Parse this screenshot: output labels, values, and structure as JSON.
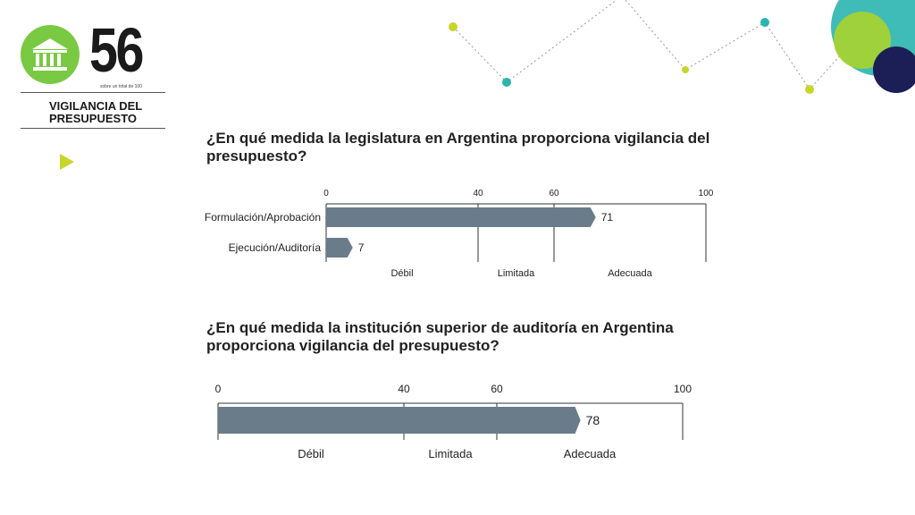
{
  "colors": {
    "bar": "#6a7b89",
    "green": "#7ac943",
    "teal": "#2bb5b0",
    "navy": "#1c1f55",
    "lime": "#c8d62a"
  },
  "logo": {
    "icon": "bank-building-icon",
    "score": "56",
    "score_sub": "sobre un total de 100",
    "section_title": "VIGILANCIA DEL PRESUPUESTO"
  },
  "nav": {
    "icon": "play-triangle-icon"
  },
  "chart_data": [
    {
      "type": "bar",
      "orientation": "horizontal",
      "title": "¿En qué medida la legislatura en Argentina proporciona vigilancia del presupuesto?",
      "categories": [
        "Formulación/Aprobación",
        "Ejecución/Auditoría"
      ],
      "values": [
        71,
        7
      ],
      "xlim": [
        0,
        100
      ],
      "ticks": [
        0,
        40,
        60,
        100
      ],
      "bands": [
        "Débil",
        "Limitada",
        "Adecuada"
      ]
    },
    {
      "type": "bar",
      "orientation": "horizontal",
      "title": "¿En qué medida la institución superior de auditoría en Argentina proporciona vigilancia del presupuesto?",
      "categories": [
        ""
      ],
      "values": [
        78
      ],
      "xlim": [
        0,
        100
      ],
      "ticks": [
        0,
        40,
        60,
        100
      ],
      "bands": [
        "Débil",
        "Limitada",
        "Adecuada"
      ]
    }
  ]
}
